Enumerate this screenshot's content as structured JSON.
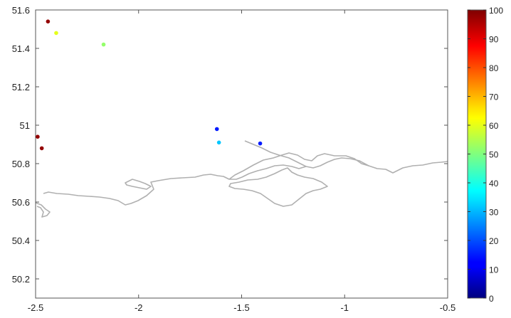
{
  "chart_data": {
    "type": "scatter",
    "title": "",
    "xlabel": "",
    "ylabel": "",
    "xlim": [
      -2.5,
      -0.5
    ],
    "ylim": [
      50.1,
      51.6
    ],
    "x_ticks": [
      "-2.5",
      "-2",
      "-1.5",
      "-1",
      "-0.5"
    ],
    "x_tick_values": [
      -2.5,
      -2,
      -1.5,
      -1,
      -0.5
    ],
    "y_ticks": [
      "50.2",
      "50.4",
      "50.6",
      "50.8",
      "51",
      "51.2",
      "51.4",
      "51.6"
    ],
    "y_tick_values": [
      50.2,
      50.4,
      50.6,
      50.8,
      51.0,
      51.2,
      51.4,
      51.6
    ],
    "grid": false,
    "colormap": "jet",
    "colorbar": {
      "range": [
        0,
        100
      ],
      "ticks": [
        "0",
        "10",
        "20",
        "30",
        "40",
        "50",
        "60",
        "70",
        "80",
        "90",
        "100"
      ],
      "tick_values": [
        0,
        10,
        20,
        30,
        40,
        50,
        60,
        70,
        80,
        90,
        100
      ],
      "placement": "right"
    },
    "points": [
      {
        "x": -2.44,
        "y": 51.54,
        "value": 98
      },
      {
        "x": -2.4,
        "y": 51.48,
        "value": 60
      },
      {
        "x": -2.17,
        "y": 51.42,
        "value": 52
      },
      {
        "x": -2.49,
        "y": 50.94,
        "value": 98
      },
      {
        "x": -2.47,
        "y": 50.88,
        "value": 98
      },
      {
        "x": -1.62,
        "y": 50.98,
        "value": 15
      },
      {
        "x": -1.61,
        "y": 50.91,
        "value": 32
      },
      {
        "x": -1.41,
        "y": 50.905,
        "value": 15
      }
    ],
    "coastline_color": "#b0b0b0"
  }
}
